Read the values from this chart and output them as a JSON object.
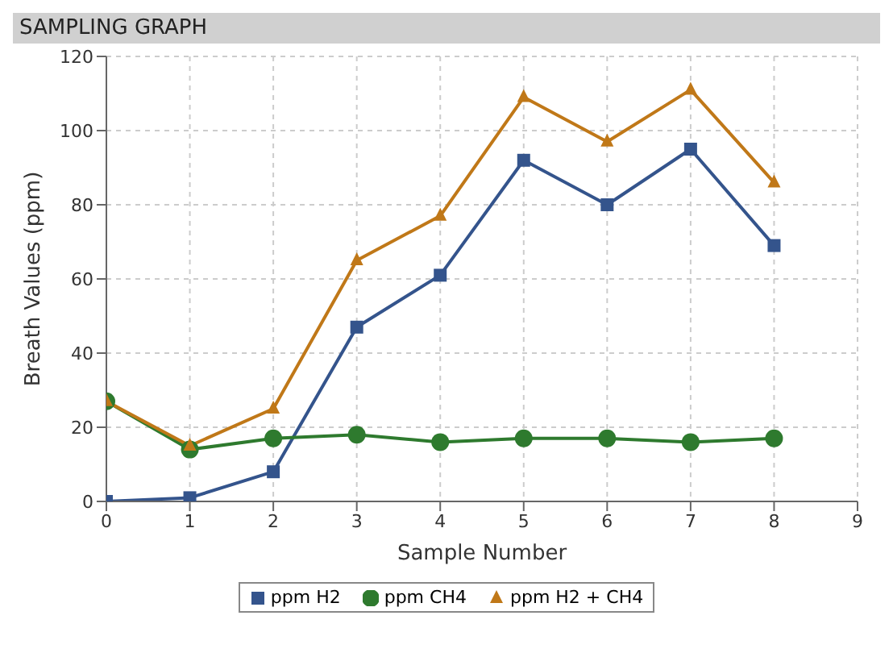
{
  "chart_data": {
    "type": "line",
    "title": "SAMPLING GRAPH",
    "xlabel": "Sample Number",
    "ylabel": "Breath Values (ppm)",
    "x": [
      0,
      1,
      2,
      3,
      4,
      5,
      6,
      7,
      8
    ],
    "xlim": [
      0,
      9
    ],
    "xticks": [
      0,
      1,
      2,
      3,
      4,
      5,
      6,
      7,
      8,
      9
    ],
    "ylim": [
      0,
      120
    ],
    "yticks": [
      0,
      20,
      40,
      60,
      80,
      100,
      120
    ],
    "grid": true,
    "legend": "bottom",
    "series": [
      {
        "name": "ppm H2",
        "color": "#34548c",
        "marker": "square",
        "values": [
          0,
          1,
          8,
          47,
          61,
          92,
          80,
          95,
          69
        ]
      },
      {
        "name": "ppm CH4",
        "color": "#2e7a2e",
        "marker": "circle",
        "values": [
          27,
          14,
          17,
          18,
          16,
          17,
          17,
          16,
          17
        ]
      },
      {
        "name": "ppm H2 + CH4",
        "color": "#c07818",
        "marker": "triangle",
        "values": [
          27,
          15,
          25,
          65,
          77,
          109,
          97,
          111,
          86
        ]
      }
    ]
  }
}
